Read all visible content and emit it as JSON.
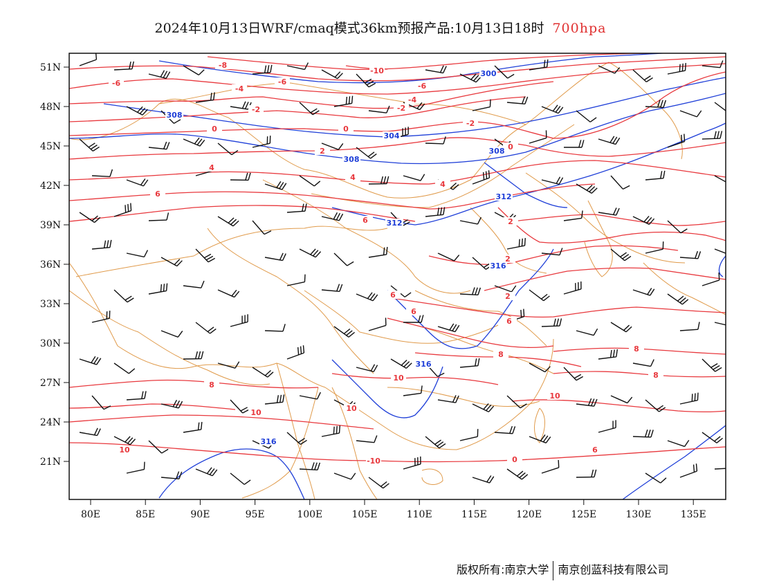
{
  "header": {
    "title": "2024年10月13日WRF/cmaq模式36km预报产品:10月13日18时",
    "level": "700hpa"
  },
  "footer": {
    "left": "版权所有:南京大学",
    "right": "南京创蓝科技有限公司"
  },
  "map": {
    "lon_ticks": [
      "80E",
      "85E",
      "90E",
      "95E",
      "100E",
      "105E",
      "110E",
      "115E",
      "120E",
      "125E",
      "130E",
      "135E"
    ],
    "lat_ticks": [
      "51N",
      "48N",
      "45N",
      "42N",
      "39N",
      "36N",
      "33N",
      "30N",
      "27N",
      "24N",
      "21N"
    ],
    "colors": {
      "temperature": "#e8383d",
      "height": "#1f3fd8",
      "border": "#e09a4a",
      "wind": "#111111"
    },
    "temperature_labels": [
      "-10",
      "-8",
      "-6",
      "-6",
      "-6",
      "-4",
      "-4",
      "-2",
      "-2",
      "-2",
      "0",
      "0",
      "0",
      "2",
      "2",
      "2",
      "2",
      "4",
      "4",
      "4",
      "6",
      "6",
      "6",
      "6",
      "6",
      "8",
      "8",
      "8",
      "8",
      "10",
      "10",
      "10",
      "10",
      "-10",
      "10",
      "0",
      "6"
    ],
    "height_labels": [
      "300",
      "304",
      "308",
      "308",
      "308",
      "312",
      "312",
      "316",
      "316",
      "316"
    ]
  }
}
